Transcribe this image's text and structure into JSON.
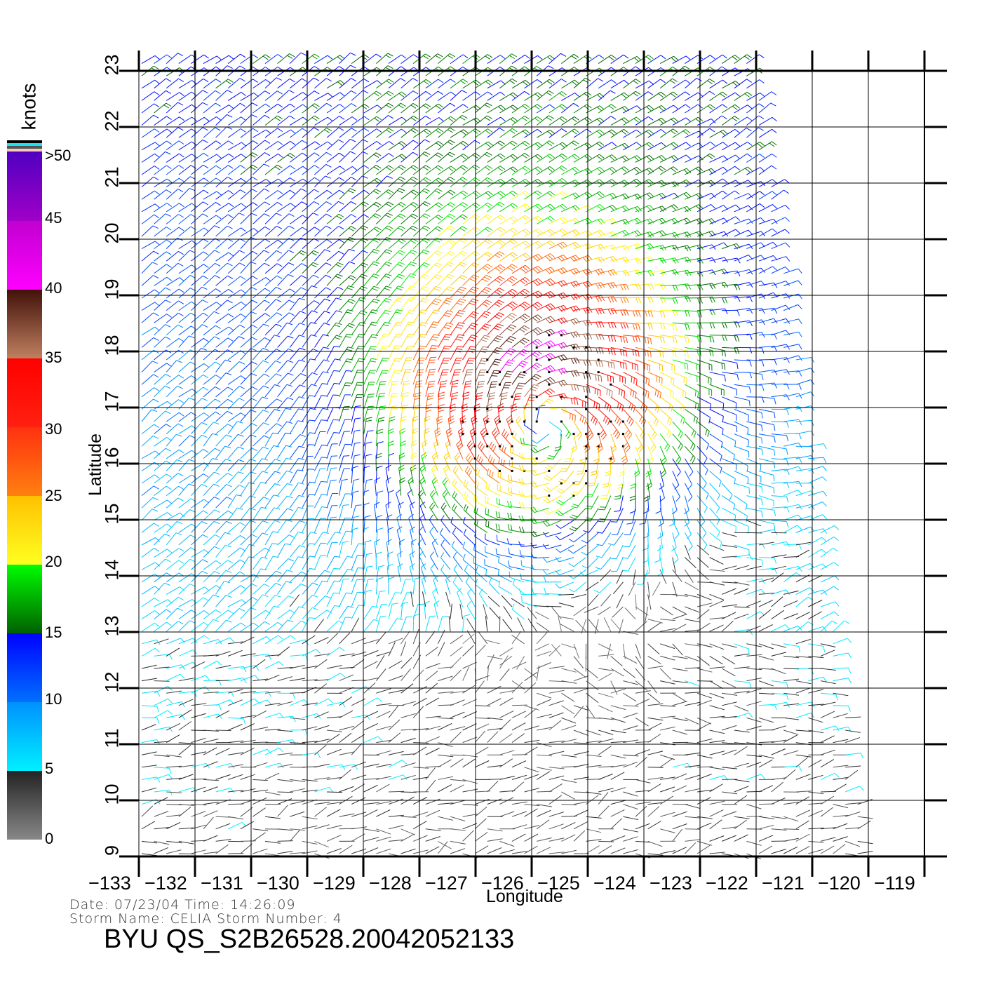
{
  "chart_data": {
    "type": "wind_barb",
    "title": "BYU QS_S2B26528.20042052133",
    "xlabel": "Longitude",
    "ylabel": "Latitude",
    "xlim": [
      -133,
      -119
    ],
    "ylim": [
      9,
      23
    ],
    "x_ticks": [
      "-133",
      "-132",
      "-131",
      "-130",
      "-129",
      "-128",
      "-127",
      "-126",
      "-125",
      "-124",
      "-123",
      "-122",
      "-121",
      "-120",
      "-119"
    ],
    "y_ticks": [
      "9",
      "10",
      "11",
      "12",
      "13",
      "14",
      "15",
      "16",
      "17",
      "18",
      "19",
      "20",
      "21",
      "22",
      "23"
    ],
    "grid": true,
    "colorbar": {
      "label": "knots",
      "ticks": [
        "0",
        "5",
        "10",
        "15",
        "20",
        "25",
        "30",
        "35",
        "40",
        "45",
        ">50"
      ],
      "placement": "left",
      "segments": [
        {
          "range": [
            0,
            5
          ],
          "colors": [
            "#888888",
            "#222222"
          ]
        },
        {
          "range": [
            5,
            10
          ],
          "colors": [
            "#00f0ff",
            "#0090ff"
          ]
        },
        {
          "range": [
            10,
            15
          ],
          "colors": [
            "#0070ff",
            "#0000ff"
          ]
        },
        {
          "range": [
            15,
            20
          ],
          "colors": [
            "#006000",
            "#00ff00"
          ]
        },
        {
          "range": [
            20,
            25
          ],
          "colors": [
            "#ffff20",
            "#ffc000"
          ]
        },
        {
          "range": [
            25,
            30
          ],
          "colors": [
            "#ff8010",
            "#ff3010"
          ]
        },
        {
          "range": [
            30,
            35
          ],
          "colors": [
            "#ff2010",
            "#ff0000"
          ]
        },
        {
          "range": [
            35,
            40
          ],
          "colors": [
            "#c08060",
            "#401008"
          ]
        },
        {
          "range": [
            40,
            45
          ],
          "colors": [
            "#ff00ff",
            "#c000d0"
          ]
        },
        {
          "range": [
            45,
            50
          ],
          "colors": [
            "#a000c8",
            "#5000c0"
          ]
        }
      ]
    }
  },
  "info": {
    "date_line": "Date:  07/23/04    Time:  14:26:09",
    "storm_line": "Storm  Name:  CELIA    Storm  Number:  4"
  }
}
